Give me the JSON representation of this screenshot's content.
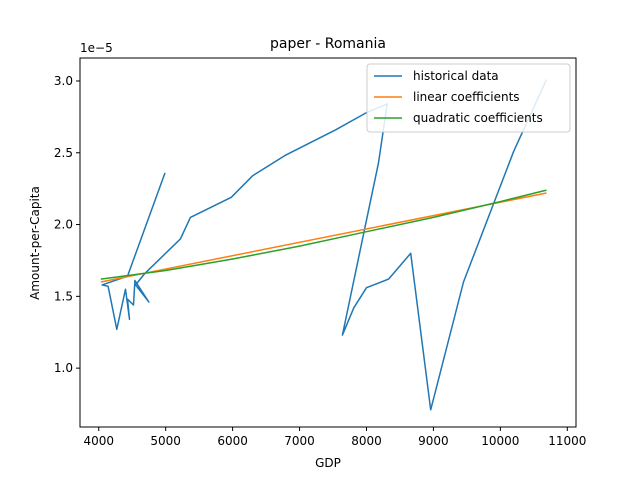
{
  "chart_data": {
    "type": "line",
    "title": "paper - Romania",
    "xlabel": "GDP",
    "ylabel": "Amount-per-Capita",
    "y_scale_note": "1e−5",
    "xlim": [
      3720,
      11130
    ],
    "ylim": [
      0.59,
      3.16
    ],
    "x_ticks": [
      4000,
      5000,
      6000,
      7000,
      8000,
      9000,
      10000,
      11000
    ],
    "x_tick_labels": [
      "4000",
      "5000",
      "6000",
      "7000",
      "8000",
      "9000",
      "10000",
      "11000"
    ],
    "y_ticks": [
      1.0,
      1.5,
      2.0,
      2.5,
      3.0
    ],
    "y_tick_labels": [
      "1.0",
      "1.5",
      "2.0",
      "2.5",
      "3.0"
    ],
    "grid": false,
    "legend_position": "top-right",
    "series": [
      {
        "name": "historical data",
        "color": "#1f77b4",
        "x": [
          4990,
          4430,
          4050,
          4140,
          4270,
          4400,
          4460,
          4430,
          4520,
          4540,
          4750,
          4550,
          4690,
          4890,
          5220,
          5370,
          5980,
          6300,
          6780,
          7540,
          8000,
          8310,
          8180,
          7640,
          7810,
          8000,
          8330,
          8660,
          8960,
          9450,
          10200,
          10690
        ],
        "y": [
          2.36,
          1.64,
          1.58,
          1.57,
          1.27,
          1.55,
          1.34,
          1.48,
          1.44,
          1.61,
          1.46,
          1.58,
          1.66,
          1.75,
          1.9,
          2.05,
          2.19,
          2.34,
          2.48,
          2.66,
          2.78,
          2.84,
          2.43,
          1.23,
          1.42,
          1.56,
          1.62,
          1.8,
          0.71,
          1.6,
          2.51,
          3.01
        ]
      },
      {
        "name": "linear coefficients",
        "color": "#ff7f0e",
        "x": [
          4030,
          10690
        ],
        "y": [
          1.6,
          2.22
        ]
      },
      {
        "name": "quadratic coefficients",
        "color": "#2ca02c",
        "x": [
          4030,
          5000,
          6000,
          7000,
          8000,
          9000,
          10000,
          10690
        ],
        "y": [
          1.62,
          1.68,
          1.76,
          1.85,
          1.95,
          2.05,
          2.16,
          2.24
        ]
      }
    ]
  }
}
